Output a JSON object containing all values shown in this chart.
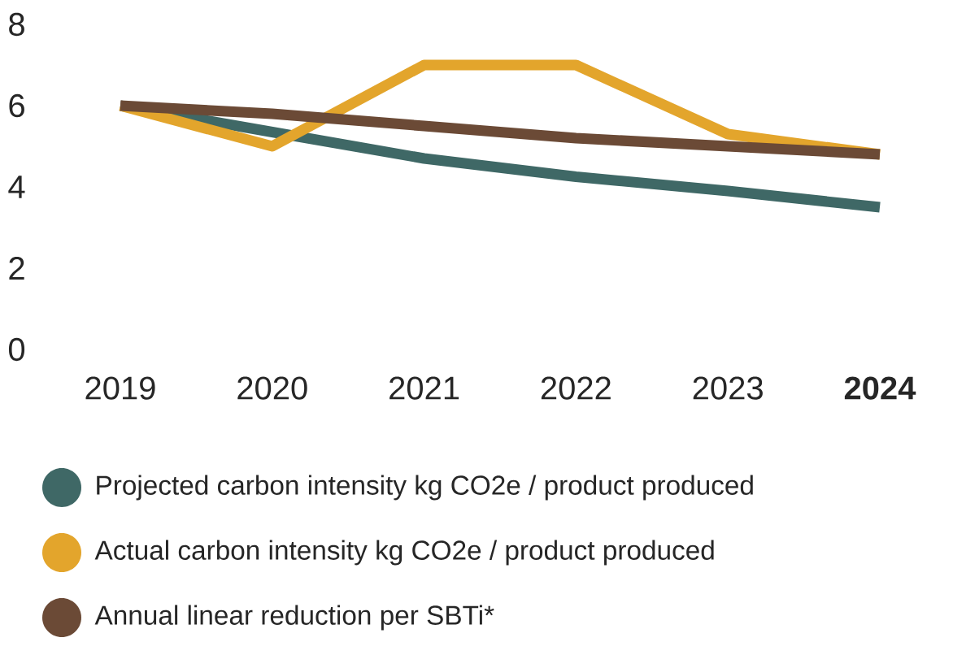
{
  "chart_data": {
    "type": "line",
    "categories": [
      "2019",
      "2020",
      "2021",
      "2022",
      "2023",
      "2024"
    ],
    "series": [
      {
        "name": "Projected carbon intensity kg CO2e / product produced",
        "color": "#3f6866",
        "values": [
          6.0,
          5.35,
          4.7,
          4.25,
          3.9,
          3.5
        ]
      },
      {
        "name": "Actual carbon intensity kg CO2e / product produced",
        "color": "#e3a52c",
        "values": [
          6.0,
          5.0,
          7.0,
          7.0,
          5.3,
          4.8
        ]
      },
      {
        "name": "Annual linear reduction per SBTi*",
        "color": "#6b4a36",
        "values": [
          6.0,
          5.8,
          5.5,
          5.2,
          5.0,
          4.8
        ]
      }
    ],
    "ylim": [
      0,
      8
    ],
    "yticks": [
      0,
      2,
      4,
      6,
      8
    ],
    "grid": false,
    "legend": "bottom",
    "marker": "none",
    "line_style": "solid"
  }
}
